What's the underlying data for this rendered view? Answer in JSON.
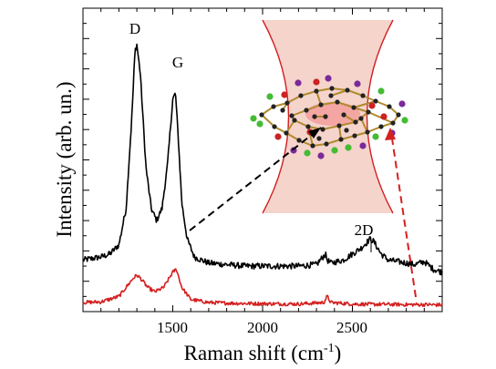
{
  "chart_data": {
    "type": "line",
    "xlabel_main": "Raman shift (cm",
    "xlabel_sup": "-1",
    "xlabel_close": ")",
    "ylabel": "Intensity (arb. un.)",
    "xlim": [
      1000,
      3000
    ],
    "ylim": [
      0,
      100
    ],
    "x_ticks": [
      1500,
      2000,
      2500
    ],
    "x_tick_labels": [
      "1500",
      "2000",
      "2500"
    ],
    "y_ticks_labeled": false,
    "series": [
      {
        "color": "#000000",
        "x": [
          1000,
          1050,
          1100,
          1150,
          1200,
          1240,
          1270,
          1290,
          1300,
          1320,
          1350,
          1380,
          1410,
          1440,
          1470,
          1500,
          1515,
          1530,
          1550,
          1580,
          1620,
          1700,
          1800,
          1900,
          2000,
          2100,
          2200,
          2300,
          2350,
          2360,
          2380,
          2450,
          2500,
          2550,
          2600,
          2620,
          2660,
          2700,
          2750,
          2800,
          2850,
          2900,
          2950,
          3000
        ],
        "y": [
          17,
          17.5,
          18,
          19,
          22,
          34,
          62,
          86,
          88,
          78,
          48,
          34,
          30,
          34,
          48,
          70,
          72,
          58,
          36,
          24,
          18,
          16,
          15.5,
          15,
          15,
          15,
          15,
          15.5,
          19,
          17,
          16,
          17,
          19,
          21,
          24,
          23,
          19,
          17,
          16.5,
          16,
          15.5,
          16.5,
          14,
          13
        ]
      },
      {
        "color": "#d42020",
        "x": [
          1000,
          1100,
          1200,
          1240,
          1280,
          1300,
          1320,
          1360,
          1400,
          1450,
          1500,
          1520,
          1550,
          1600,
          1700,
          1800,
          2000,
          2200,
          2340,
          2360,
          2380,
          2500,
          2600,
          2700,
          2800,
          2900,
          3000
        ],
        "y": [
          3,
          3.2,
          5,
          8,
          11,
          12,
          11,
          8,
          6.5,
          8,
          13,
          14,
          8,
          4,
          3,
          2.8,
          2.6,
          2.5,
          3,
          5,
          3,
          2.5,
          2.4,
          2.4,
          2.3,
          2.3,
          2.2
        ]
      }
    ],
    "annotations": [
      {
        "text": "D",
        "x": 1290,
        "y": 88
      },
      {
        "text": "G",
        "x": 1520,
        "y": 72
      },
      {
        "text": "2D",
        "x": 2610,
        "y": 24
      }
    ]
  },
  "colors": {
    "beam_fill": "#f5d4cc",
    "beam_edge": "#d42020",
    "molecule_bond": "#b08a2e",
    "molecule_core": "#f08080",
    "atom_dark": "#222222",
    "atom_green": "#44bb33",
    "atom_purple": "#7a2a9a",
    "atom_red": "#cc2222"
  }
}
